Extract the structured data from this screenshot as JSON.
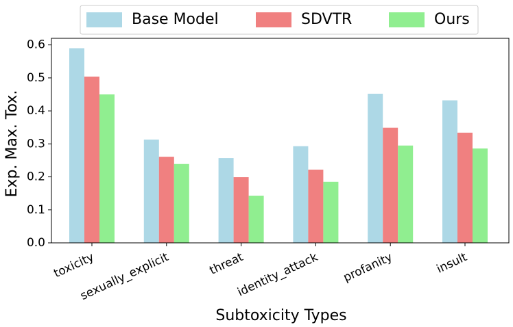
{
  "chart_data": {
    "type": "bar",
    "x_label": "Subtoxicity Types",
    "y_label": "Exp. Max. Tox.",
    "categories": [
      "toxicity",
      "sexually_explicit",
      "threat",
      "identity_attack",
      "profanity",
      "insult"
    ],
    "series": [
      {
        "name": "Base Model",
        "color": "#add8e6",
        "values": [
          0.59,
          0.313,
          0.257,
          0.293,
          0.452,
          0.432
        ]
      },
      {
        "name": "SDVTR",
        "color": "#f08080",
        "values": [
          0.504,
          0.261,
          0.199,
          0.222,
          0.349,
          0.334
        ]
      },
      {
        "name": "Ours",
        "color": "#90ee90",
        "values": [
          0.45,
          0.239,
          0.143,
          0.185,
          0.295,
          0.286
        ]
      }
    ],
    "ylim": [
      0,
      0.62
    ],
    "yticks": [
      {
        "value": 0,
        "label": "0.0"
      },
      0.1,
      0.2,
      0.3,
      0.4,
      0.5,
      0.6
    ],
    "legend_position": "top"
  }
}
